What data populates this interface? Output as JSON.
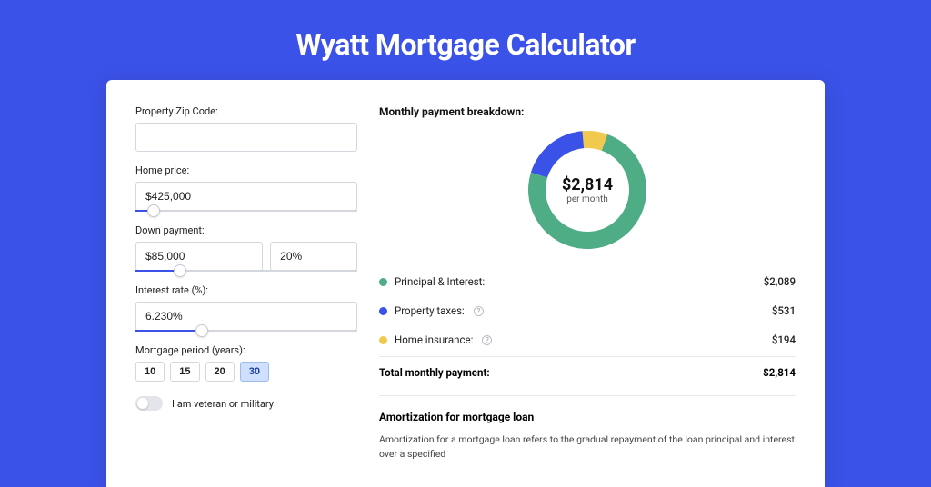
{
  "page": {
    "title": "Wyatt Mortgage Calculator",
    "background_color": "#3b52e8",
    "card_background": "#ffffff"
  },
  "inputs": {
    "zip": {
      "label": "Property Zip Code:",
      "value": ""
    },
    "home_price": {
      "label": "Home price:",
      "value": "$425,000",
      "slider_percent": 8
    },
    "down_payment": {
      "label": "Down payment:",
      "amount": "$85,000",
      "percent": "20%",
      "slider_percent": 20
    },
    "interest_rate": {
      "label": "Interest rate (%):",
      "value": "6.230%",
      "slider_percent": 30
    },
    "mortgage_period": {
      "label": "Mortgage period (years):",
      "options": [
        "10",
        "15",
        "20",
        "30"
      ],
      "selected": "30"
    },
    "veteran": {
      "label": "I am veteran or military",
      "checked": false
    }
  },
  "breakdown": {
    "heading": "Monthly payment breakdown:",
    "center_amount": "$2,814",
    "center_sub": "per month",
    "donut": {
      "size": 130,
      "thickness": 19,
      "segments": [
        {
          "label": "Principal & Interest:",
          "value": "$2,089",
          "color": "#4ead85",
          "fraction": 0.742,
          "help": false
        },
        {
          "label": "Property taxes:",
          "value": "$531",
          "color": "#3b52e8",
          "fraction": 0.189,
          "help": true
        },
        {
          "label": "Home insurance:",
          "value": "$194",
          "color": "#f1c94e",
          "fraction": 0.069,
          "help": true
        }
      ]
    },
    "total_label": "Total monthly payment:",
    "total_value": "$2,814"
  },
  "amortization": {
    "title": "Amortization for mortgage loan",
    "text": "Amortization for a mortgage loan refers to the gradual repayment of the loan principal and interest over a specified"
  }
}
